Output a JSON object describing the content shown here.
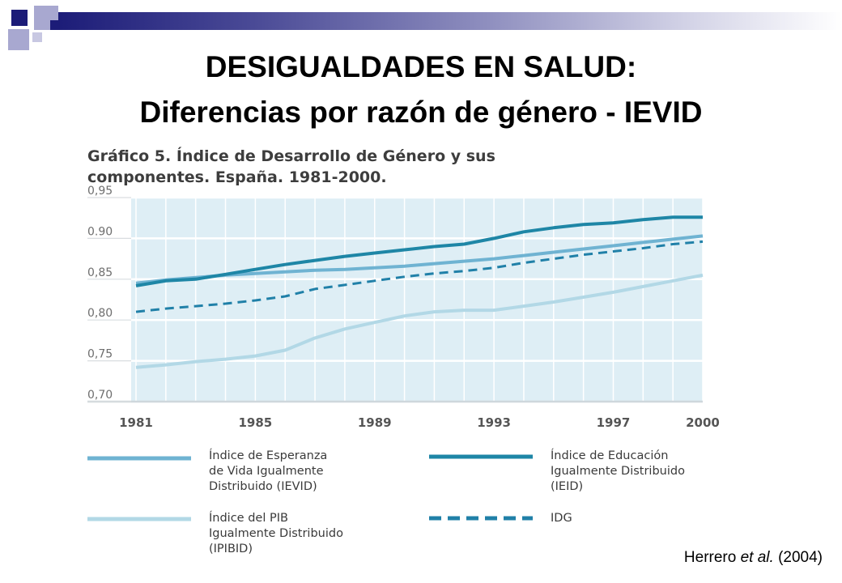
{
  "title": "DESIGUALDADES EN SALUD:",
  "subtitle": "Diferencias por razón de género - IEVID",
  "citation": {
    "author": "Herrero",
    "etal": "et al.",
    "year": "(2004)"
  },
  "colors": {
    "deco_dark": "#1c1c78",
    "deco_light": "#8f8fbf",
    "plot_bg": "#deeef5"
  },
  "chart_data": {
    "type": "line",
    "title_line1": "Gráfico 5. Índice de Desarrollo de Género y sus",
    "title_line2": "componentes. España. 1981-2000.",
    "xlabel": "",
    "ylabel": "",
    "xlim": [
      1981,
      2000
    ],
    "ylim": [
      0.7,
      0.95
    ],
    "x_ticks": [
      "1981",
      "1985",
      "1989",
      "1993",
      "1997",
      "2000"
    ],
    "y_ticks": [
      "0,95",
      "0.90",
      "0,85",
      "0,80",
      "0,75",
      "0,70"
    ],
    "grid": true,
    "legend_position": "bottom",
    "x": [
      1981,
      1982,
      1983,
      1984,
      1985,
      1986,
      1987,
      1988,
      1989,
      1990,
      1991,
      1992,
      1993,
      1994,
      1995,
      1996,
      1997,
      1998,
      1999,
      2000
    ],
    "series": [
      {
        "name_lines": [
          "Índice de Esperanza",
          "de Vida Igualmente",
          "Distribuido (IEVID)"
        ],
        "color": "#6fb3d2",
        "style": "solid",
        "values": [
          0.845,
          0.849,
          0.852,
          0.855,
          0.857,
          0.859,
          0.861,
          0.862,
          0.864,
          0.866,
          0.869,
          0.872,
          0.875,
          0.879,
          0.883,
          0.887,
          0.891,
          0.895,
          0.899,
          0.903
        ]
      },
      {
        "name_lines": [
          "Índice de Educación",
          "Igualmente Distribuido",
          "(IEID)"
        ],
        "color": "#1e86a6",
        "style": "solid",
        "values": [
          0.842,
          0.848,
          0.85,
          0.856,
          0.862,
          0.868,
          0.873,
          0.878,
          0.882,
          0.886,
          0.89,
          0.893,
          0.9,
          0.908,
          0.913,
          0.917,
          0.919,
          0.923,
          0.926,
          0.926
        ]
      },
      {
        "name_lines": [
          "Índice del PIB",
          "Igualmente Distribuido",
          "(IPIBID)"
        ],
        "color": "#b2d8e6",
        "style": "solid",
        "values": [
          0.742,
          0.745,
          0.749,
          0.752,
          0.756,
          0.763,
          0.778,
          0.789,
          0.797,
          0.805,
          0.81,
          0.812,
          0.812,
          0.817,
          0.822,
          0.828,
          0.834,
          0.841,
          0.848,
          0.855
        ]
      },
      {
        "name_lines": [
          "IDG"
        ],
        "color": "#2080a8",
        "style": "dashed",
        "values": [
          0.81,
          0.814,
          0.817,
          0.82,
          0.824,
          0.829,
          0.838,
          0.843,
          0.848,
          0.853,
          0.857,
          0.86,
          0.864,
          0.87,
          0.875,
          0.88,
          0.884,
          0.888,
          0.893,
          0.896
        ]
      }
    ]
  }
}
